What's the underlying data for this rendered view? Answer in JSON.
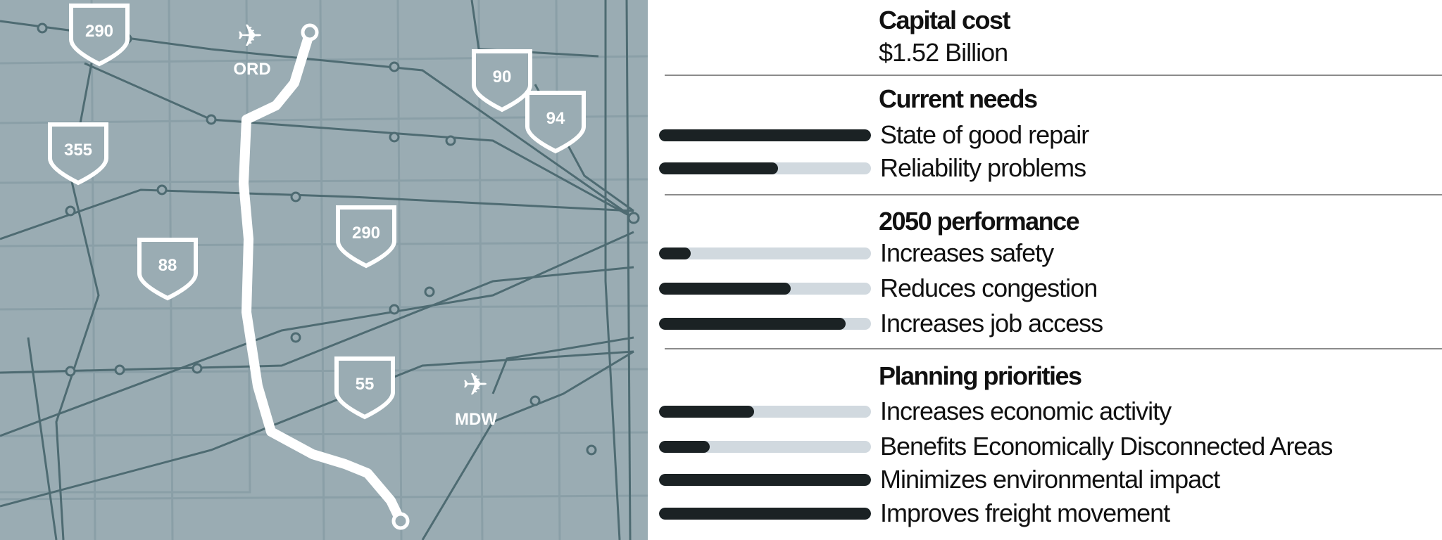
{
  "map": {
    "background_color": "#9aacb3",
    "route_color": "#ffffff",
    "transit_color": "#4e6b72",
    "shields": [
      {
        "label": "290"
      },
      {
        "label": "355"
      },
      {
        "label": "88"
      },
      {
        "label": "290"
      },
      {
        "label": "55"
      },
      {
        "label": "90"
      },
      {
        "label": "94"
      }
    ],
    "airports": [
      {
        "label": "ORD",
        "icon": "airplane-icon"
      },
      {
        "label": "MDW",
        "icon": "airplane-icon"
      }
    ]
  },
  "panel": {
    "capital_cost": {
      "heading": "Capital cost",
      "value": "$1.52 Billion"
    },
    "sections": [
      {
        "heading": "Current needs",
        "items": [
          {
            "label": "State of good repair",
            "level": 1.0
          },
          {
            "label": "Reliability problems",
            "level": 0.56
          }
        ]
      },
      {
        "heading": "2050 performance",
        "items": [
          {
            "label": "Increases safety",
            "level": 0.15
          },
          {
            "label": "Reduces congestion",
            "level": 0.62
          },
          {
            "label": "Increases job access",
            "level": 0.88
          }
        ]
      },
      {
        "heading": "Planning priorities",
        "items": [
          {
            "label": "Increases economic activity",
            "level": 0.45
          },
          {
            "label": "Benefits Economically Disconnected Areas",
            "level": 0.24
          },
          {
            "label": "Minimizes environmental impact",
            "level": 1.0
          },
          {
            "label": "Improves freight movement",
            "level": 1.0
          }
        ]
      }
    ],
    "bar_fill_color": "#1b2224",
    "bar_track_color": "#d1d9df"
  }
}
